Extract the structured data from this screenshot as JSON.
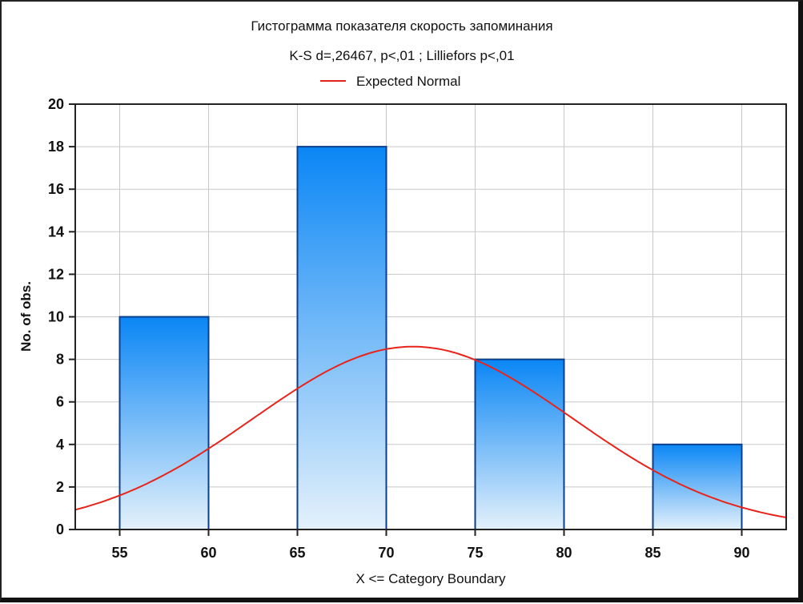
{
  "chart_data": {
    "type": "bar",
    "title": "Гистограмма показателя скорость запоминания",
    "subtitle": "K-S d=,26467, p<,01 ; Lilliefors p<,01",
    "xlabel": "X <= Category Boundary",
    "ylabel": "No. of obs.",
    "xlim": [
      52.5,
      92.5
    ],
    "ylim": [
      0,
      20
    ],
    "x_ticks": [
      55,
      60,
      65,
      70,
      75,
      80,
      85,
      90
    ],
    "y_ticks": [
      0,
      2,
      4,
      6,
      8,
      10,
      12,
      14,
      16,
      18,
      20
    ],
    "bins": [
      {
        "from": 55,
        "to": 60,
        "value": 10
      },
      {
        "from": 65,
        "to": 70,
        "value": 18
      },
      {
        "from": 75,
        "to": 80,
        "value": 8
      },
      {
        "from": 85,
        "to": 90,
        "value": 4
      }
    ],
    "series": [
      {
        "name": "Expected Normal",
        "type": "line",
        "mean": 71.5,
        "sd": 9.0,
        "peak": 8.6,
        "x": [
          52.5,
          55,
          60,
          65,
          70,
          71.5,
          75,
          80,
          85,
          90,
          92.5
        ],
        "y": [
          1.0,
          1.6,
          3.8,
          6.7,
          8.4,
          8.6,
          8.0,
          5.6,
          2.9,
          1.2,
          0.6
        ]
      }
    ],
    "grid": true,
    "legend": "top-center",
    "colors": {
      "bar_top": "#0a86f5",
      "bar_bottom": "#e4f1fb",
      "bar_stroke": "#0b3f8c",
      "curve": "#e8231a",
      "grid": "#c8c8c8"
    }
  }
}
